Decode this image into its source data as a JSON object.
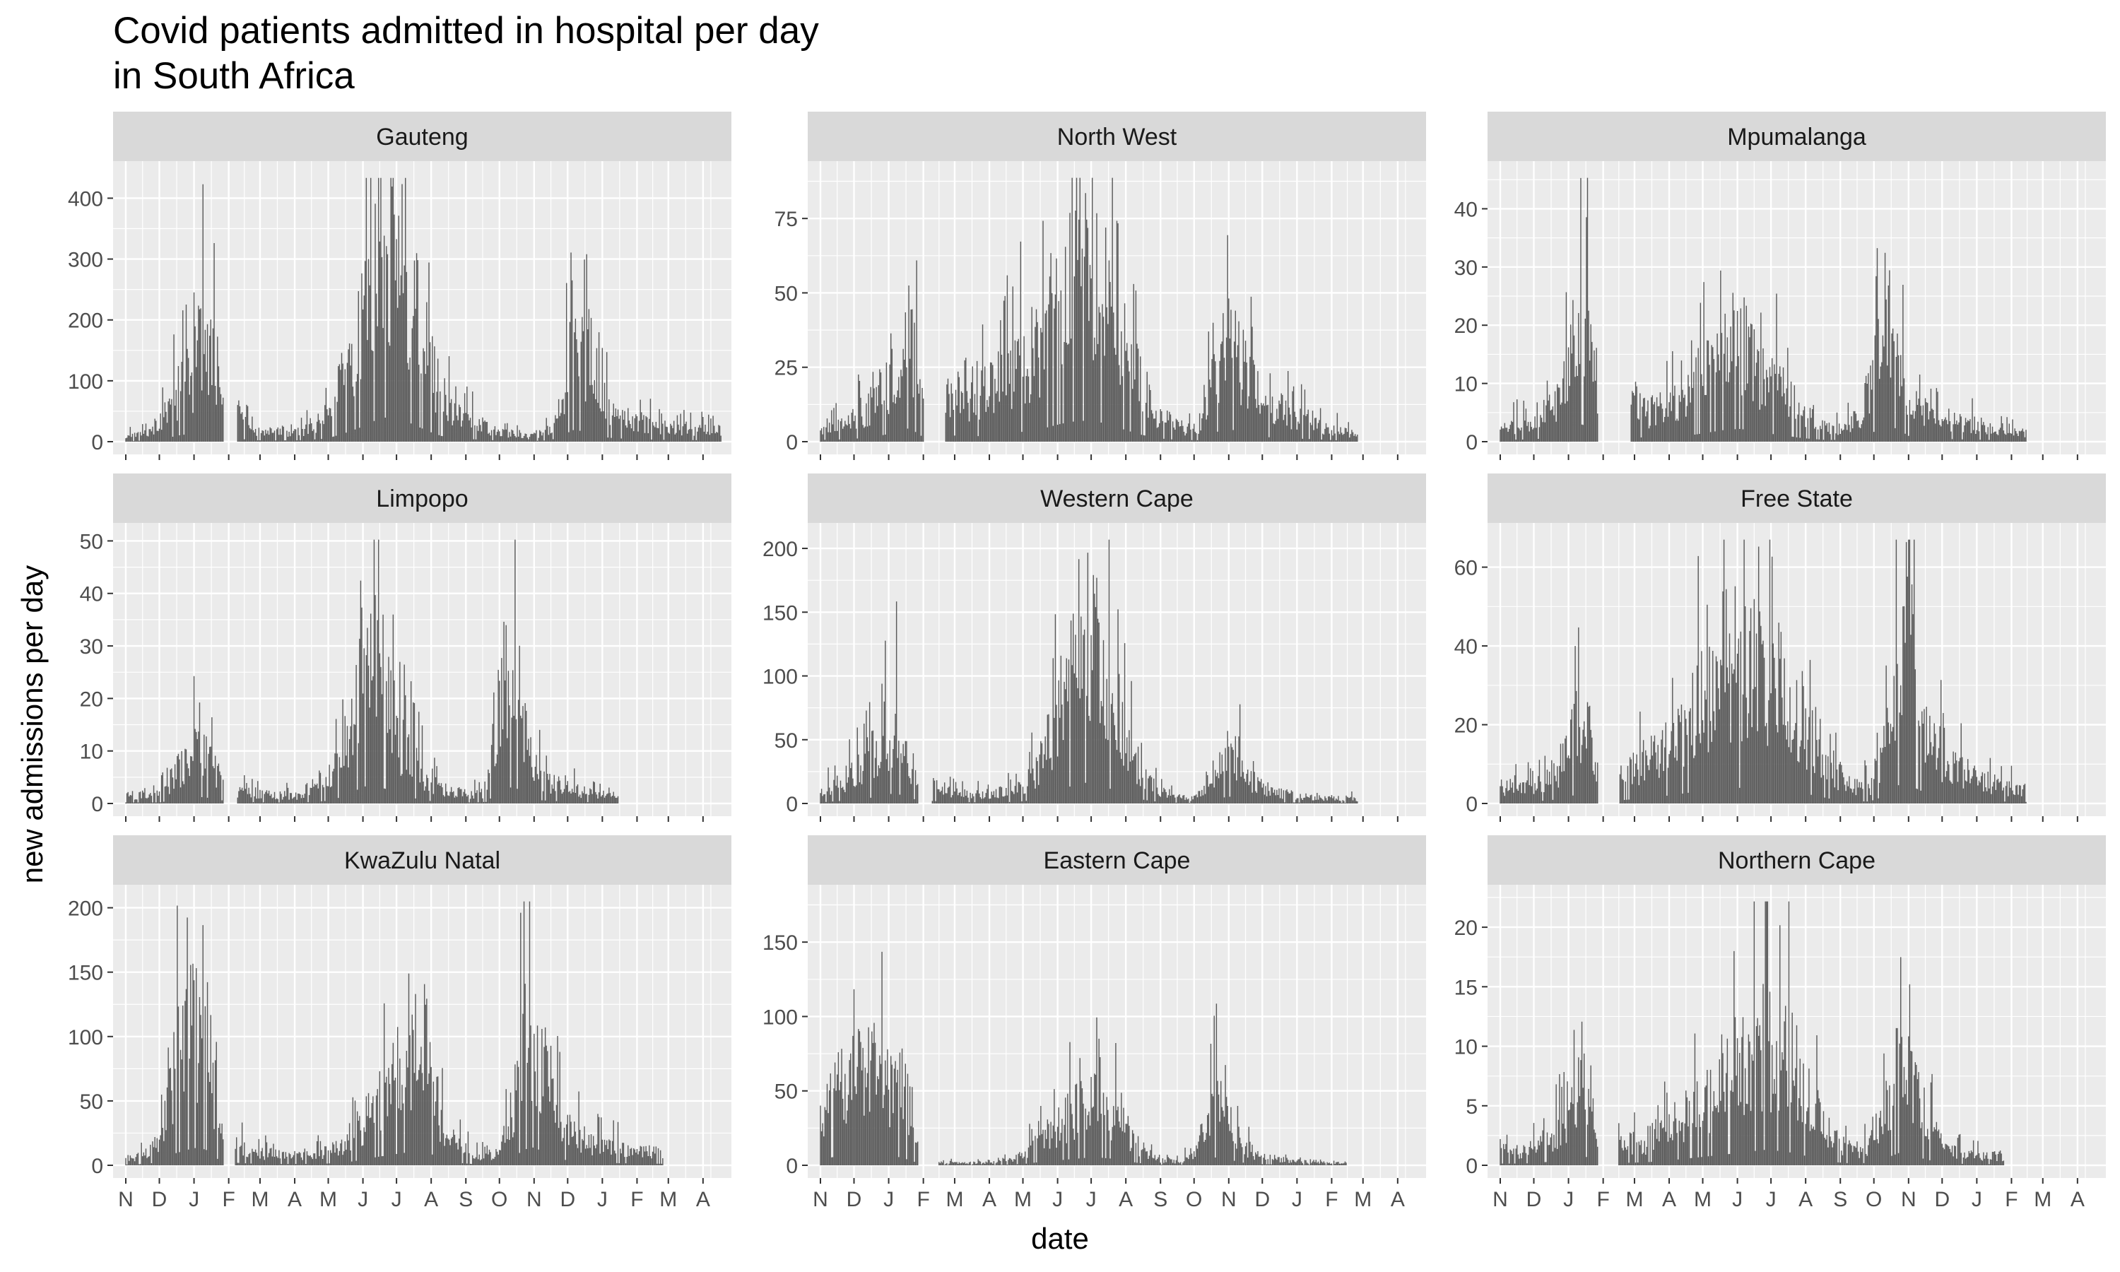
{
  "chart_data": {
    "type": "bar",
    "title": "Covid patients admitted in hospital per day\nin South Africa",
    "xlabel": "date",
    "ylabel": "new admissions per day",
    "x_tick_labels": [
      "N",
      "D",
      "J",
      "F",
      "M",
      "A",
      "M",
      "J",
      "J",
      "A",
      "S",
      "O",
      "N",
      "D",
      "J",
      "F",
      "M",
      "A"
    ],
    "x_range": [
      "2020-11-01",
      "2022-04-15"
    ],
    "grid": true,
    "colors": {
      "bar": "#595959",
      "panel_bg": "#ebebeb",
      "strip_bg": "#d9d9d9",
      "grid": "#ffffff"
    },
    "facets": [
      {
        "name": "Gauteng",
        "ylim": [
          0,
          440
        ],
        "yticks": [
          0,
          100,
          200,
          300,
          400
        ],
        "gaps": [
          [
            88,
            100
          ]
        ],
        "envelope": [
          [
            0,
            10
          ],
          [
            20,
            20
          ],
          [
            35,
            55
          ],
          [
            48,
            105
          ],
          [
            60,
            135
          ],
          [
            68,
            210
          ],
          [
            76,
            190
          ],
          [
            84,
            100
          ],
          [
            100,
            60
          ],
          [
            110,
            25
          ],
          [
            130,
            20
          ],
          [
            160,
            25
          ],
          [
            175,
            45
          ],
          [
            185,
            80
          ],
          [
            200,
            165
          ],
          [
            212,
            250
          ],
          [
            222,
            340
          ],
          [
            232,
            395
          ],
          [
            240,
            410
          ],
          [
            250,
            340
          ],
          [
            262,
            240
          ],
          [
            272,
            160
          ],
          [
            282,
            95
          ],
          [
            295,
            55
          ],
          [
            315,
            35
          ],
          [
            335,
            20
          ],
          [
            360,
            10
          ],
          [
            380,
            25
          ],
          [
            392,
            120
          ],
          [
            400,
            190
          ],
          [
            410,
            170
          ],
          [
            420,
            105
          ],
          [
            432,
            65
          ],
          [
            450,
            45
          ],
          [
            480,
            30
          ],
          [
            510,
            25
          ],
          [
            532,
            22
          ]
        ]
      },
      {
        "name": "North West",
        "ylim": [
          0,
          90
        ],
        "yticks": [
          0,
          25,
          50,
          75
        ],
        "gaps": [
          [
            93,
            112
          ]
        ],
        "envelope": [
          [
            0,
            6
          ],
          [
            25,
            8
          ],
          [
            45,
            15
          ],
          [
            60,
            25
          ],
          [
            70,
            40
          ],
          [
            80,
            45
          ],
          [
            92,
            15
          ],
          [
            112,
            25
          ],
          [
            130,
            15
          ],
          [
            160,
            25
          ],
          [
            185,
            35
          ],
          [
            200,
            45
          ],
          [
            215,
            60
          ],
          [
            230,
            70
          ],
          [
            245,
            70
          ],
          [
            260,
            55
          ],
          [
            272,
            40
          ],
          [
            285,
            25
          ],
          [
            300,
            12
          ],
          [
            320,
            6
          ],
          [
            340,
            5
          ],
          [
            352,
            30
          ],
          [
            362,
            42
          ],
          [
            372,
            38
          ],
          [
            382,
            25
          ],
          [
            400,
            15
          ],
          [
            430,
            10
          ],
          [
            460,
            5
          ],
          [
            480,
            3
          ]
        ]
      },
      {
        "name": "Mpumalanga",
        "ylim": [
          0,
          46
        ],
        "yticks": [
          0,
          10,
          20,
          30,
          40
        ],
        "gaps": [
          [
            88,
            117
          ]
        ],
        "envelope": [
          [
            0,
            3
          ],
          [
            30,
            4
          ],
          [
            50,
            8
          ],
          [
            62,
            15
          ],
          [
            72,
            30
          ],
          [
            80,
            25
          ],
          [
            87,
            12
          ],
          [
            117,
            10
          ],
          [
            130,
            6
          ],
          [
            160,
            8
          ],
          [
            180,
            14
          ],
          [
            200,
            20
          ],
          [
            215,
            22
          ],
          [
            232,
            15
          ],
          [
            250,
            12
          ],
          [
            270,
            6
          ],
          [
            290,
            3
          ],
          [
            310,
            3
          ],
          [
            325,
            7
          ],
          [
            335,
            18
          ],
          [
            345,
            28
          ],
          [
            355,
            22
          ],
          [
            365,
            10
          ],
          [
            380,
            6
          ],
          [
            410,
            4
          ],
          [
            440,
            3
          ],
          [
            470,
            2
          ]
        ]
      },
      {
        "name": "Limpopo",
        "ylim": [
          0,
          51
        ],
        "yticks": [
          0,
          10,
          20,
          30,
          40,
          50
        ],
        "gaps": [
          [
            88,
            100
          ]
        ],
        "envelope": [
          [
            0,
            2
          ],
          [
            30,
            2
          ],
          [
            48,
            8
          ],
          [
            58,
            13
          ],
          [
            70,
            12
          ],
          [
            82,
            8
          ],
          [
            88,
            5
          ],
          [
            100,
            3
          ],
          [
            130,
            2
          ],
          [
            160,
            2
          ],
          [
            180,
            5
          ],
          [
            198,
            15
          ],
          [
            210,
            30
          ],
          [
            220,
            36
          ],
          [
            232,
            28
          ],
          [
            245,
            15
          ],
          [
            258,
            10
          ],
          [
            270,
            5
          ],
          [
            290,
            3
          ],
          [
            310,
            2
          ],
          [
            322,
            3
          ],
          [
            330,
            16
          ],
          [
            340,
            32
          ],
          [
            350,
            28
          ],
          [
            360,
            14
          ],
          [
            372,
            6
          ],
          [
            390,
            4
          ],
          [
            420,
            2
          ],
          [
            440,
            2
          ]
        ]
      },
      {
        "name": "Western Cape",
        "ylim": [
          0,
          210
        ],
        "yticks": [
          0,
          50,
          100,
          150,
          200
        ],
        "gaps": [
          [
            88,
            100
          ]
        ],
        "envelope": [
          [
            0,
            10
          ],
          [
            15,
            18
          ],
          [
            30,
            30
          ],
          [
            45,
            45
          ],
          [
            58,
            70
          ],
          [
            68,
            80
          ],
          [
            78,
            45
          ],
          [
            86,
            30
          ],
          [
            100,
            20
          ],
          [
            115,
            12
          ],
          [
            135,
            10
          ],
          [
            155,
            10
          ],
          [
            170,
            12
          ],
          [
            182,
            18
          ],
          [
            195,
            35
          ],
          [
            210,
            75
          ],
          [
            222,
            130
          ],
          [
            235,
            165
          ],
          [
            245,
            150
          ],
          [
            258,
            120
          ],
          [
            270,
            70
          ],
          [
            282,
            40
          ],
          [
            295,
            20
          ],
          [
            310,
            8
          ],
          [
            330,
            5
          ],
          [
            345,
            12
          ],
          [
            358,
            45
          ],
          [
            368,
            55
          ],
          [
            378,
            35
          ],
          [
            390,
            18
          ],
          [
            410,
            10
          ],
          [
            440,
            6
          ],
          [
            470,
            5
          ],
          [
            480,
            4
          ]
        ]
      },
      {
        "name": "Free State",
        "ylim": [
          0,
          68
        ],
        "yticks": [
          0,
          20,
          40,
          60
        ],
        "gaps": [
          [
            88,
            107
          ]
        ],
        "envelope": [
          [
            0,
            5
          ],
          [
            30,
            5
          ],
          [
            50,
            10
          ],
          [
            62,
            17
          ],
          [
            72,
            28
          ],
          [
            80,
            22
          ],
          [
            88,
            10
          ],
          [
            107,
            8
          ],
          [
            125,
            12
          ],
          [
            150,
            20
          ],
          [
            175,
            30
          ],
          [
            200,
            35
          ],
          [
            215,
            40
          ],
          [
            230,
            42
          ],
          [
            245,
            40
          ],
          [
            262,
            32
          ],
          [
            278,
            22
          ],
          [
            295,
            12
          ],
          [
            312,
            6
          ],
          [
            330,
            5
          ],
          [
            345,
            20
          ],
          [
            355,
            45
          ],
          [
            362,
            55
          ],
          [
            372,
            38
          ],
          [
            385,
            20
          ],
          [
            400,
            12
          ],
          [
            425,
            8
          ],
          [
            450,
            5
          ],
          [
            470,
            4
          ]
        ]
      },
      {
        "name": "KwaZulu Natal",
        "ylim": [
          0,
          208
        ],
        "yticks": [
          0,
          50,
          100,
          150,
          200
        ],
        "gaps": [
          [
            88,
            98
          ]
        ],
        "envelope": [
          [
            0,
            6
          ],
          [
            15,
            10
          ],
          [
            25,
            18
          ],
          [
            35,
            45
          ],
          [
            45,
            95
          ],
          [
            55,
            120
          ],
          [
            65,
            140
          ],
          [
            75,
            110
          ],
          [
            82,
            50
          ],
          [
            88,
            25
          ],
          [
            98,
            20
          ],
          [
            115,
            12
          ],
          [
            145,
            10
          ],
          [
            175,
            12
          ],
          [
            195,
            20
          ],
          [
            210,
            40
          ],
          [
            225,
            65
          ],
          [
            240,
            85
          ],
          [
            255,
            105
          ],
          [
            268,
            120
          ],
          [
            278,
            60
          ],
          [
            290,
            25
          ],
          [
            310,
            10
          ],
          [
            330,
            8
          ],
          [
            345,
            40
          ],
          [
            355,
            120
          ],
          [
            365,
            140
          ],
          [
            375,
            95
          ],
          [
            385,
            55
          ],
          [
            400,
            30
          ],
          [
            420,
            20
          ],
          [
            450,
            15
          ],
          [
            480,
            12
          ]
        ]
      },
      {
        "name": "Eastern Cape",
        "ylim": [
          0,
          180
        ],
        "yticks": [
          0,
          50,
          100,
          150
        ],
        "gaps": [
          [
            88,
            106
          ]
        ],
        "envelope": [
          [
            0,
            40
          ],
          [
            15,
            60
          ],
          [
            30,
            75
          ],
          [
            45,
            80
          ],
          [
            60,
            65
          ],
          [
            70,
            55
          ],
          [
            80,
            35
          ],
          [
            87,
            15
          ],
          [
            106,
            3
          ],
          [
            130,
            2
          ],
          [
            150,
            2
          ],
          [
            170,
            5
          ],
          [
            185,
            12
          ],
          [
            200,
            25
          ],
          [
            215,
            35
          ],
          [
            230,
            45
          ],
          [
            245,
            55
          ],
          [
            260,
            45
          ],
          [
            272,
            30
          ],
          [
            285,
            15
          ],
          [
            300,
            5
          ],
          [
            320,
            3
          ],
          [
            335,
            10
          ],
          [
            345,
            40
          ],
          [
            355,
            55
          ],
          [
            365,
            40
          ],
          [
            375,
            20
          ],
          [
            390,
            8
          ],
          [
            420,
            4
          ],
          [
            450,
            3
          ],
          [
            470,
            2
          ]
        ]
      },
      {
        "name": "Northern Cape",
        "ylim": [
          0,
          22.5
        ],
        "yticks": [
          0,
          5,
          10,
          15,
          20
        ],
        "gaps": [
          [
            88,
            106
          ]
        ],
        "envelope": [
          [
            0,
            1.5
          ],
          [
            20,
            1.5
          ],
          [
            45,
            3
          ],
          [
            60,
            5
          ],
          [
            72,
            9
          ],
          [
            82,
            5
          ],
          [
            88,
            2
          ],
          [
            106,
            2
          ],
          [
            130,
            2.5
          ],
          [
            150,
            4
          ],
          [
            170,
            6
          ],
          [
            190,
            8
          ],
          [
            205,
            9.5
          ],
          [
            220,
            11
          ],
          [
            235,
            13
          ],
          [
            250,
            12
          ],
          [
            265,
            10
          ],
          [
            280,
            6
          ],
          [
            295,
            3
          ],
          [
            315,
            1.5
          ],
          [
            330,
            2
          ],
          [
            345,
            6
          ],
          [
            358,
            11
          ],
          [
            368,
            9
          ],
          [
            380,
            5
          ],
          [
            395,
            2
          ],
          [
            420,
            1
          ],
          [
            450,
            1
          ]
        ]
      }
    ]
  }
}
